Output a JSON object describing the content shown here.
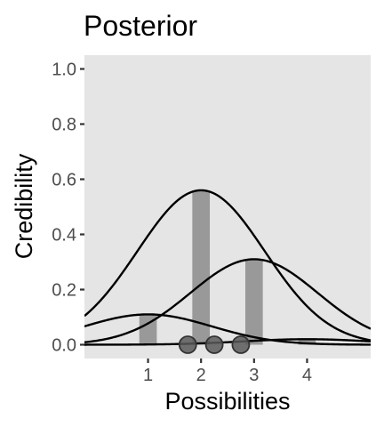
{
  "chart_data": {
    "type": "bar",
    "title": "Posterior",
    "xlabel": "Possibilities",
    "ylabel": "Credibility",
    "xlim": [
      -0.2,
      5.2
    ],
    "ylim": [
      -0.05,
      1.05
    ],
    "x_ticks": [
      1,
      2,
      3,
      4
    ],
    "y_ticks": [
      0.0,
      0.2,
      0.4,
      0.6,
      0.8,
      1.0
    ],
    "x_tick_labels": [
      "1",
      "2",
      "3",
      "4"
    ],
    "y_tick_labels": [
      "0.0",
      "0.2",
      "0.4",
      "0.6",
      "0.8",
      "1.0"
    ],
    "grid": false,
    "legend": "none",
    "bars": {
      "x": [
        1,
        2,
        3,
        4
      ],
      "values": [
        0.11,
        0.56,
        0.31,
        0.02
      ],
      "color": "#999999"
    },
    "data_points": {
      "x": [
        1.75,
        2.25,
        2.75
      ],
      "y": [
        0,
        0,
        0
      ],
      "color": "#595959"
    },
    "curves": [
      {
        "mean": 1,
        "sd": 1.2,
        "scale": 0.11
      },
      {
        "mean": 2,
        "sd": 1.2,
        "scale": 0.56
      },
      {
        "mean": 3,
        "sd": 1.2,
        "scale": 0.31
      },
      {
        "mean": 4,
        "sd": 1.2,
        "scale": 0.02
      }
    ],
    "colors": {
      "panel": "#e5e5e5",
      "line": "#000000",
      "tick_text": "#4d4d4d",
      "tick_mark": "#333333"
    }
  }
}
